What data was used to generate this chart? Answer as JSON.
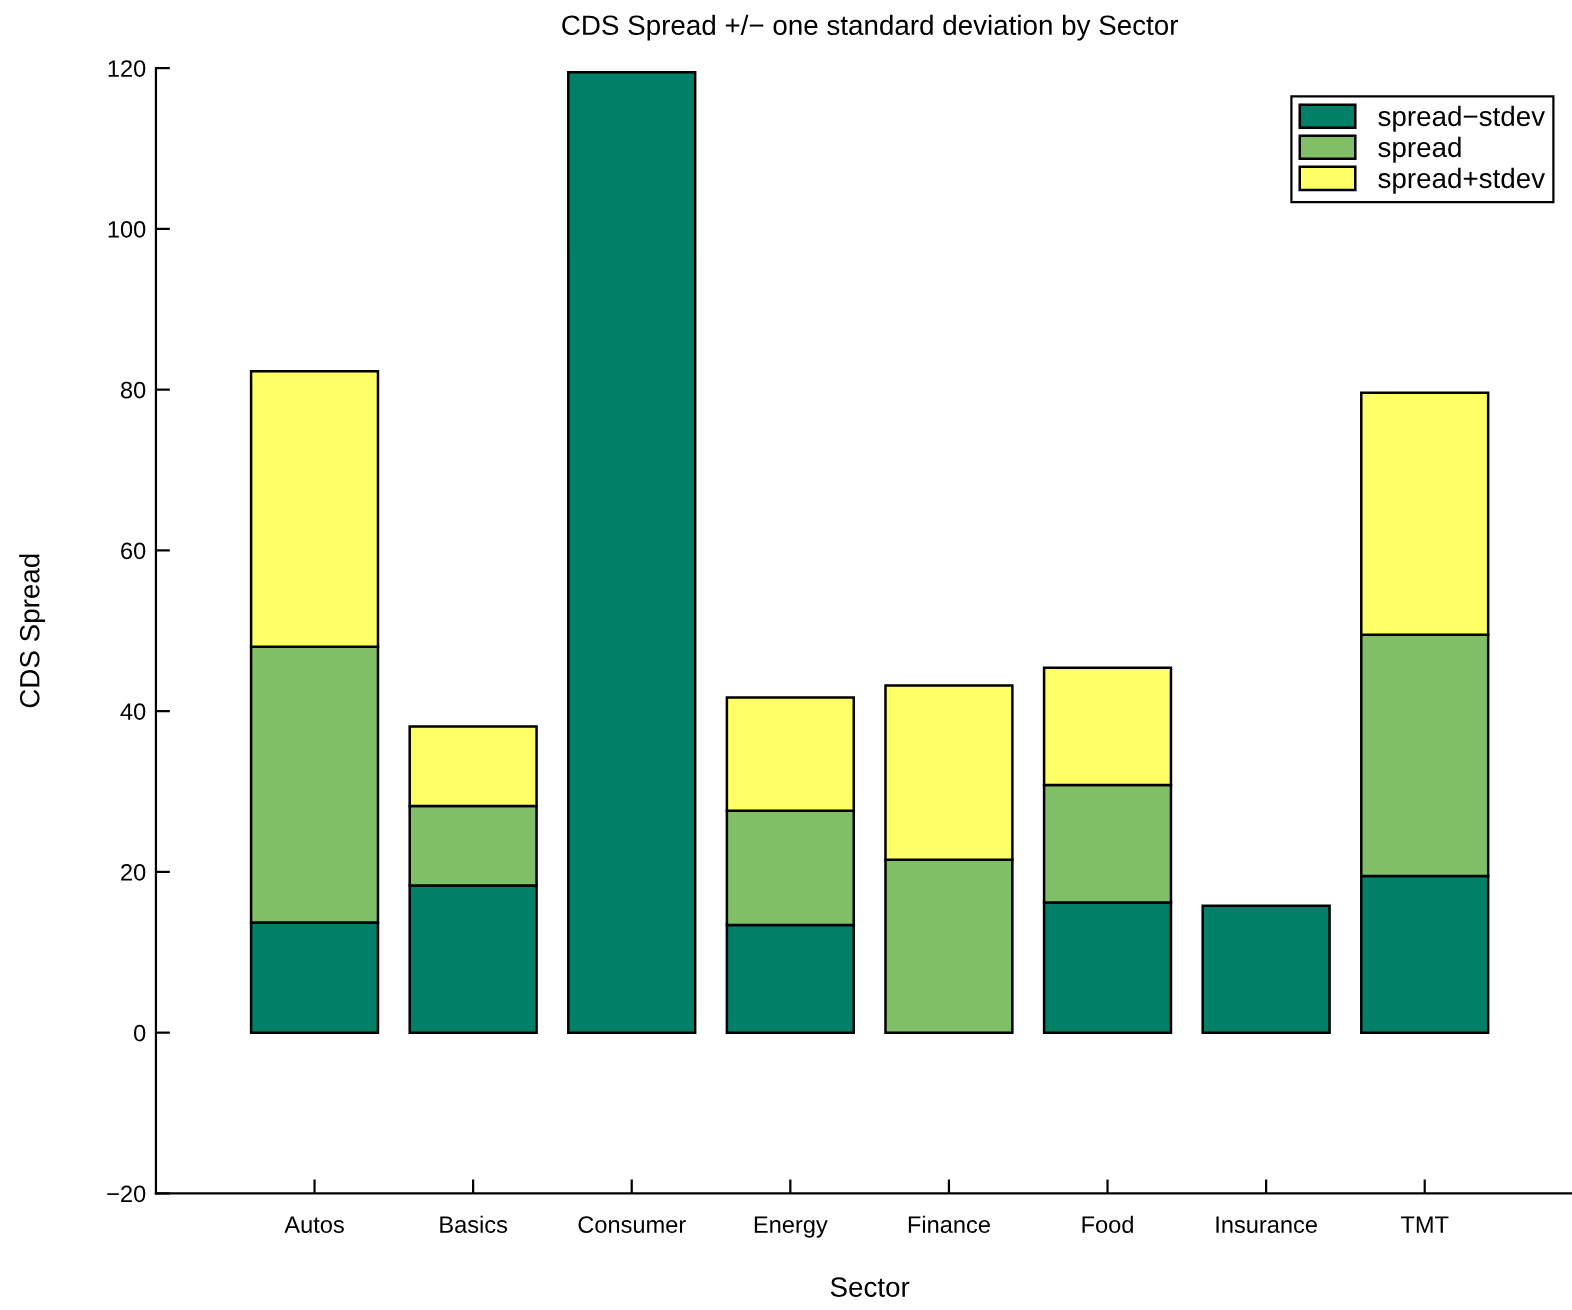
{
  "chart_data": {
    "type": "bar",
    "title": "CDS Spread +/− one standard deviation by Sector",
    "xlabel": "Sector",
    "ylabel": "CDS Spread",
    "categories": [
      "Autos",
      "Basics",
      "Consumer",
      "Energy",
      "Finance",
      "Food",
      "Insurance",
      "TMT"
    ],
    "stacked": true,
    "series": [
      {
        "name": "spread−stdev",
        "color": "#008066",
        "values": [
          13.7,
          18.3,
          119.5,
          13.4,
          null,
          16.2,
          15.8,
          19.5
        ]
      },
      {
        "name": "spread",
        "color": "#80bf66",
        "values": [
          34.3,
          9.9,
          null,
          14.2,
          21.5,
          14.6,
          null,
          30.0
        ]
      },
      {
        "name": "spread+stdev",
        "color": "#ffff66",
        "values": [
          34.3,
          9.9,
          null,
          14.1,
          21.7,
          14.6,
          null,
          30.1
        ]
      }
    ],
    "ylim": [
      -20,
      120
    ],
    "yticks": [
      -20,
      0,
      20,
      40,
      60,
      80,
      100,
      120
    ],
    "legend": "top right",
    "grid": false
  }
}
